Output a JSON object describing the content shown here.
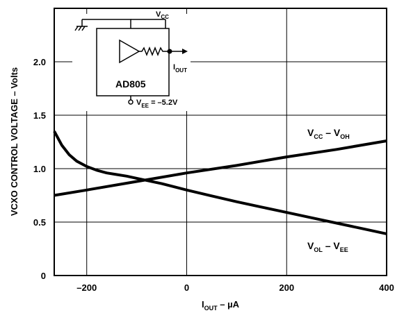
{
  "chart_data": {
    "type": "line",
    "title": "",
    "xlabel": {
      "main": "I",
      "sub": "OUT",
      "rest": " – µA"
    },
    "ylabel": "VCXO CONTROL VOLTAGE – Volts",
    "xlim": [
      -265,
      400
    ],
    "ylim": [
      0,
      2.5
    ],
    "x_ticks": [
      -200,
      0,
      200,
      400
    ],
    "x_tick_labels": [
      "–200",
      "0",
      "200",
      "400"
    ],
    "y_ticks": [
      0,
      0.5,
      1.0,
      1.5,
      2.0
    ],
    "y_tick_labels": [
      "0",
      "0.5",
      "1.0",
      "1.5",
      "2.0"
    ],
    "grid": true,
    "series": [
      {
        "name": "VCC – VOH",
        "label": {
          "v1": "V",
          "s1": "CC",
          "mid": " – V",
          "s2": "OH"
        },
        "x": [
          -265,
          -200,
          -100,
          0,
          100,
          200,
          300,
          400
        ],
        "y": [
          0.75,
          0.8,
          0.88,
          0.96,
          1.03,
          1.11,
          1.18,
          1.26
        ]
      },
      {
        "name": "VOL – VEE",
        "label": {
          "v1": "V",
          "s1": "OL",
          "mid": " – V",
          "s2": "EE"
        },
        "x": [
          -265,
          -250,
          -235,
          -220,
          -200,
          -180,
          -160,
          -140,
          -120,
          -100,
          -50,
          0,
          50,
          100,
          150,
          200,
          250,
          300,
          350,
          400
        ],
        "y": [
          1.35,
          1.22,
          1.13,
          1.07,
          1.02,
          0.985,
          0.96,
          0.945,
          0.93,
          0.91,
          0.86,
          0.8,
          0.745,
          0.69,
          0.64,
          0.59,
          0.54,
          0.49,
          0.44,
          0.39
        ]
      }
    ]
  },
  "inset": {
    "device_label": "AD805",
    "vcc": {
      "main": "V",
      "sub": "CC"
    },
    "iout": {
      "main": "I",
      "sub": "OUT"
    },
    "vee": {
      "main": "V",
      "sub": "EE",
      "rest": " = –5.2V"
    }
  }
}
